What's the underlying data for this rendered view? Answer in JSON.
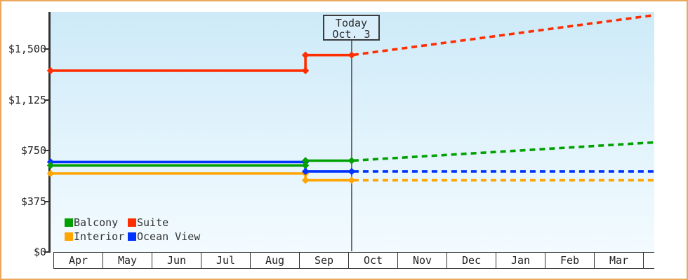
{
  "window": {
    "background_color": "#ffffff",
    "frame_color": "#eca75d"
  },
  "chart_data": {
    "type": "line",
    "title": "",
    "x_axis": {
      "categories": [
        "Apr",
        "May",
        "Jun",
        "Jul",
        "Aug",
        "Sep",
        "Oct",
        "Nov",
        "Dec",
        "Jan",
        "Feb",
        "Mar"
      ],
      "unit": "month index from Apr (fractional = day of month)"
    },
    "y_axis": {
      "ticks": [
        {
          "label": "$0",
          "value": 0
        },
        {
          "label": "$375",
          "value": 375
        },
        {
          "label": "$750",
          "value": 750
        },
        {
          "label": "$1,125",
          "value": 1125
        },
        {
          "label": "$1,500",
          "value": 1500
        }
      ],
      "ylim": [
        0,
        1775
      ],
      "currency": "USD"
    },
    "today": {
      "line1": "Today",
      "line2": "Oct. 3",
      "month_index": 6.07
    },
    "projection_end_month_index": 12.23,
    "series": [
      {
        "name": "Interior",
        "color": "#ffa500",
        "solid": [
          [
            0,
            580
          ],
          [
            5.13,
            580
          ],
          [
            5.13,
            530
          ],
          [
            6.07,
            530
          ]
        ],
        "dashed": [
          [
            6.07,
            530
          ],
          [
            12.23,
            530
          ]
        ]
      },
      {
        "name": "Ocean View",
        "color": "#0033ff",
        "solid": [
          [
            0,
            665
          ],
          [
            5.13,
            665
          ],
          [
            5.13,
            595
          ],
          [
            6.07,
            595
          ]
        ],
        "dashed": [
          [
            6.07,
            595
          ],
          [
            12.23,
            595
          ]
        ]
      },
      {
        "name": "Balcony",
        "color": "#00a000",
        "solid": [
          [
            0,
            640
          ],
          [
            5.13,
            640
          ],
          [
            5.13,
            675
          ],
          [
            6.07,
            675
          ]
        ],
        "dashed": [
          [
            6.07,
            675
          ],
          [
            12.23,
            810
          ]
        ]
      },
      {
        "name": "Suite",
        "color": "#ff2e00",
        "solid": [
          [
            0,
            1340
          ],
          [
            5.13,
            1340
          ],
          [
            5.13,
            1455
          ],
          [
            6.07,
            1455
          ]
        ],
        "dashed": [
          [
            6.07,
            1455
          ],
          [
            12.23,
            1750
          ]
        ]
      }
    ],
    "legend": {
      "items": [
        {
          "label": "Balcony",
          "color": "#00a000"
        },
        {
          "label": "Suite",
          "color": "#ff2e00"
        },
        {
          "label": "Interior",
          "color": "#ffa500"
        },
        {
          "label": "Ocean View",
          "color": "#0033ff"
        }
      ],
      "position": "bottom-left inside plot"
    },
    "grid": false,
    "solid_segment": "historical price (Apr 1 to Oct 3)",
    "dashed_segment": "projected price (after Oct 3)"
  }
}
